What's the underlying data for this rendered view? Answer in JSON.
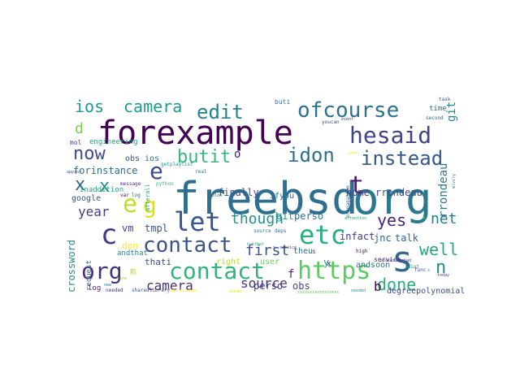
{
  "word_cloud": {
    "words": [
      {
        "text": "freebsd",
        "color": "#2e6e8e"
      },
      {
        "text": "org",
        "color": "#2a788e"
      },
      {
        "text": "forexample",
        "color": "#440154"
      },
      {
        "text": "s",
        "color": "#31688e"
      },
      {
        "text": "etc",
        "color": "#2ab07f"
      },
      {
        "text": "contact",
        "color": "#3b528b"
      },
      {
        "text": "org",
        "color": "#46327e"
      },
      {
        "text": "https",
        "color": "#5ec962"
      },
      {
        "text": "ofcourse",
        "color": "#2c728e"
      },
      {
        "text": "hesaid",
        "color": "#414487"
      },
      {
        "text": "contact",
        "color": "#31b57b"
      },
      {
        "text": "let",
        "color": "#39568c"
      },
      {
        "text": "c",
        "color": "#443983"
      },
      {
        "text": "e",
        "color": "#bddf26"
      },
      {
        "text": "g",
        "color": "#d8e219"
      },
      {
        "text": "idon",
        "color": "#2d708e"
      },
      {
        "text": "instead",
        "color": "#38588c"
      },
      {
        "text": "edit",
        "color": "#26828e"
      },
      {
        "text": "e",
        "color": "#3e4a89"
      },
      {
        "text": "t",
        "color": "#481f70"
      },
      {
        "text": "x",
        "color": "#33638d"
      },
      {
        "text": "x",
        "color": "#20928c"
      },
      {
        "text": "now",
        "color": "#3e4c8a"
      },
      {
        "text": "butit",
        "color": "#35b779"
      },
      {
        "text": "ios",
        "color": "#1f9a8a"
      },
      {
        "text": "camera",
        "color": "#1e9c89"
      },
      {
        "text": "yes",
        "color": "#482576"
      },
      {
        "text": "well",
        "color": "#22a884"
      },
      {
        "text": "done",
        "color": "#29af7f"
      },
      {
        "text": "n",
        "color": "#21908d"
      },
      {
        "text": "first",
        "color": "#3b528b"
      },
      {
        "text": "source",
        "color": "#46327e"
      },
      {
        "text": "camera",
        "color": "#472d7b"
      },
      {
        "text": "though",
        "color": "#21918c"
      },
      {
        "text": "net",
        "color": "#277f8e"
      },
      {
        "text": "year",
        "color": "#433e85"
      },
      {
        "text": "d",
        "color": "#7ad151"
      },
      {
        "text": "b",
        "color": "#440154"
      },
      {
        "text": "rrondeau",
        "color": "#2a788e"
      },
      {
        "text": "git",
        "color": "#25848e"
      },
      {
        "text": "forinstance",
        "color": "#2d708e"
      },
      {
        "text": "finally",
        "color": "#3b528b"
      },
      {
        "text": "home",
        "color": "#424186"
      },
      {
        "text": "rrondeau",
        "color": "#3f4889"
      },
      {
        "text": "jnc",
        "color": "#33638d"
      },
      {
        "text": "talk",
        "color": "#31668e"
      },
      {
        "text": "infact",
        "color": "#443983"
      },
      {
        "text": "git",
        "color": "#1f988b"
      },
      {
        "text": "perso",
        "color": "#2a768e"
      },
      {
        "text": "vm",
        "color": "#414487"
      },
      {
        "text": "tmpl",
        "color": "#3b528b"
      },
      {
        "text": "crossword",
        "color": "#21918c"
      },
      {
        "text": "google",
        "color": "#3b528b"
      },
      {
        "text": "perso",
        "color": "#453781"
      },
      {
        "text": "obs",
        "color": "#3f4889"
      },
      {
        "text": "degreepolynomial",
        "color": "#3e4c8a"
      },
      {
        "text": "obs",
        "color": "#3b528b"
      },
      {
        "text": "ios",
        "color": "#2c728e"
      },
      {
        "text": "mol",
        "color": "#404688"
      },
      {
        "text": "inaddition",
        "color": "#22a884"
      },
      {
        "text": "engineering",
        "color": "#20a386"
      },
      {
        "text": "don",
        "color": "#fde725"
      },
      {
        "text": "thati",
        "color": "#404688"
      },
      {
        "text": "right",
        "color": "#b5de2b"
      },
      {
        "text": "ifyou",
        "color": "#2e6e8e"
      },
      {
        "text": "andsoon",
        "color": "#2c728e"
      },
      {
        "text": "log",
        "color": "#481a6c"
      },
      {
        "text": "m",
        "color": "#c8e020"
      },
      {
        "text": "andthat",
        "color": "#24868e"
      },
      {
        "text": "request",
        "color": "#2e6e8e"
      },
      {
        "text": "user",
        "color": "#6ccd5a"
      },
      {
        "text": "theu",
        "color": "#2f6c8e"
      },
      {
        "text": "s",
        "color": "#3a548c"
      },
      {
        "text": "f",
        "color": "#482878"
      },
      {
        "text": "y",
        "color": "#1f9a8a"
      },
      {
        "text": "x",
        "color": "#482173"
      },
      {
        "text": "service",
        "color": "#481f70"
      },
      {
        "text": "time",
        "color": "#31688e"
      },
      {
        "text": "buti",
        "color": "#2c728e"
      },
      {
        "text": "youcan",
        "color": "#404688"
      },
      {
        "text": "event",
        "color": "#3e4c8a"
      },
      {
        "text": "task",
        "color": "#3b528b"
      },
      {
        "text": "second",
        "color": "#31688e"
      },
      {
        "text": "getplaylist",
        "color": "#1f988b"
      },
      {
        "text": "real",
        "color": "#2a788e"
      },
      {
        "text": "python",
        "color": "#35b779"
      },
      {
        "text": "message",
        "color": "#46327e"
      },
      {
        "text": "approx",
        "color": "#3b528b"
      },
      {
        "text": "afterall",
        "color": "#22a884"
      },
      {
        "text": "var",
        "color": "#46085c"
      },
      {
        "text": "log",
        "color": "#31688e"
      },
      {
        "text": "new",
        "color": "#2a788e"
      },
      {
        "text": "line",
        "color": "#8fd744"
      },
      {
        "text": "needed",
        "color": "#46327e"
      },
      {
        "text": "sharedlibrary",
        "color": "#3b528b"
      },
      {
        "text": "inparticular",
        "color": "#fde725"
      },
      {
        "text": "ocean",
        "color": "#dde318"
      },
      {
        "text": "source",
        "color": "#2a788e"
      },
      {
        "text": "deps",
        "color": "#31688e"
      },
      {
        "text": "butthat",
        "color": "#35b779"
      },
      {
        "text": "s",
        "color": "#3e4a89"
      },
      {
        "text": "service",
        "color": "#3e4a89"
      },
      {
        "text": "xxxxxxxxxxxxxxxxx",
        "color": "#5ec962"
      },
      {
        "text": "needed",
        "color": "#1f9e89"
      },
      {
        "text": "propagation",
        "color": "#31688e"
      },
      {
        "text": "attention",
        "color": "#22a884"
      },
      {
        "text": "high",
        "color": "#440154"
      },
      {
        "text": "sockets",
        "color": "#3b528b"
      },
      {
        "text": "sumbad",
        "color": "#3e4a89"
      },
      {
        "text": "yeah",
        "color": "#fde725"
      },
      {
        "text": "idiot",
        "color": "#1f9a8a"
      },
      {
        "text": "func",
        "color": "#3e4a89"
      },
      {
        "text": "s",
        "color": "#31688e"
      },
      {
        "text": "today",
        "color": "#414487"
      },
      {
        "text": "idldn",
        "color": "#2a788e"
      },
      {
        "text": "o",
        "color": "#482677"
      },
      {
        "text": "mlvily",
        "color": "#2a788e"
      },
      {
        "text": "u",
        "color": "#31688e"
      },
      {
        "text": "k",
        "color": "#35b779"
      }
    ]
  }
}
